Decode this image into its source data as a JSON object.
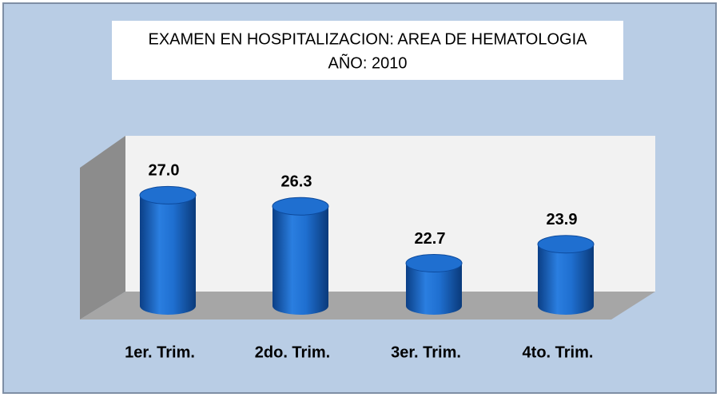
{
  "chart_data": {
    "type": "bar3d",
    "title": "EXAMEN EN HOSPITALIZACION: AREA DE HEMATOLOGIA",
    "subtitle": "AÑO: 2010",
    "categories": [
      "1er. Trim.",
      "2do. Trim.",
      "3er. Trim.",
      "4to. Trim."
    ],
    "values": [
      27.0,
      26.3,
      22.7,
      23.9
    ],
    "value_labels": [
      "27.0",
      "26.3",
      "22.7",
      "23.9"
    ],
    "color": "#1f6fd0",
    "ylim": [
      20,
      30
    ]
  }
}
